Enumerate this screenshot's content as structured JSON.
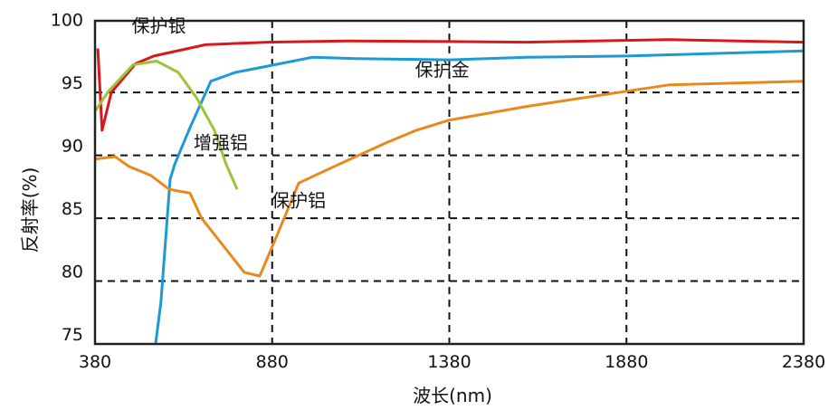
{
  "chart_data": {
    "type": "line",
    "title": "",
    "xlabel": "波长(nm)",
    "ylabel": "反射率(%)",
    "xlim": [
      380,
      2380
    ],
    "ylim": [
      75,
      100.7
    ],
    "xticks": [
      380,
      880,
      1380,
      1880,
      2380
    ],
    "yticks": [
      75,
      80,
      85,
      90,
      95,
      100
    ],
    "grid": "dashed at x ticks 880/1380/1880 and y ticks 80/85/90/95",
    "legend": "none (inline annotations)",
    "series": [
      {
        "name": "保护银",
        "color": "#d7191c",
        "x": [
          388,
          400,
          426,
          495,
          546,
          692,
          868,
          1100,
          1380,
          1600,
          2000,
          2380
        ],
        "y": [
          98.5,
          92.0,
          95.0,
          97.3,
          97.9,
          98.8,
          99.0,
          99.1,
          99.05,
          99.0,
          99.2,
          99.0
        ]
      },
      {
        "name": "保护金",
        "color": "#1b9ad6",
        "x": [
          551,
          566,
          592,
          605,
          648,
          707,
          776,
          868,
          993,
          1116,
          1380,
          1600,
          1880,
          2380
        ],
        "y": [
          75.0,
          78.3,
          88.1,
          89.3,
          92.2,
          95.9,
          96.6,
          97.1,
          97.8,
          97.7,
          97.6,
          97.8,
          97.9,
          98.3
        ]
      },
      {
        "name": "增强铝",
        "color": "#9cc33a",
        "x": [
          380,
          418,
          487,
          554,
          615,
          666,
          717,
          750,
          781
        ],
        "y": [
          93.5,
          95.1,
          97.2,
          97.5,
          96.6,
          94.6,
          92.0,
          89.3,
          87.3
        ]
      },
      {
        "name": "保护铝",
        "color": "#e8891e",
        "x": [
          380,
          436,
          477,
          538,
          589,
          648,
          681,
          801,
          845,
          896,
          955,
          1031,
          1116,
          1202,
          1287,
          1380,
          1600,
          1880,
          2000,
          2380
        ],
        "y": [
          89.7,
          89.9,
          89.1,
          88.4,
          87.3,
          87.0,
          85.0,
          80.7,
          80.4,
          83.8,
          87.8,
          88.8,
          89.9,
          91.0,
          92.0,
          92.8,
          93.9,
          95.1,
          95.6,
          95.9
        ]
      }
    ],
    "annotations": [
      {
        "text": "保护银",
        "x": 560,
        "y": 99.8
      },
      {
        "text": "保护金",
        "x": 1360,
        "y": 96.3
      },
      {
        "text": "增强铝",
        "x": 735,
        "y": 90.5
      },
      {
        "text": "保护铝",
        "x": 955,
        "y": 85.9
      }
    ]
  }
}
